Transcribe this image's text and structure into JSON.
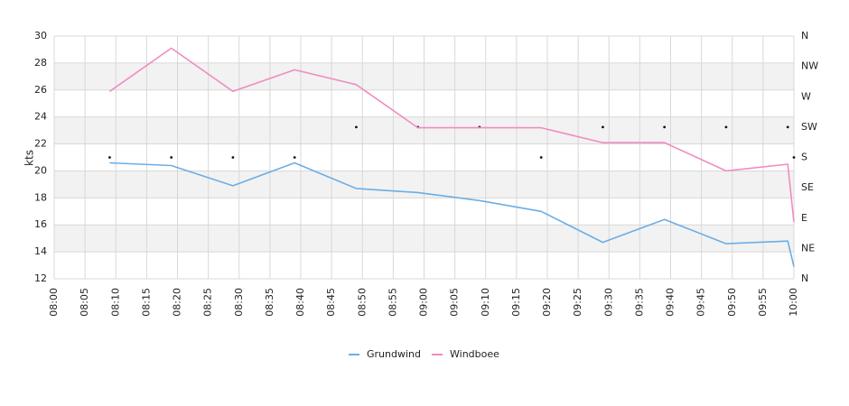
{
  "chart_data": {
    "type": "line",
    "ylabel": "kts",
    "ylim": [
      12,
      30
    ],
    "yticks": [
      12,
      14,
      16,
      18,
      20,
      22,
      24,
      26,
      28,
      30
    ],
    "xticks": [
      "08:00",
      "08:05",
      "08:10",
      "08:15",
      "08:20",
      "08:25",
      "08:30",
      "08:35",
      "08:40",
      "08:45",
      "08:50",
      "08:55",
      "09:00",
      "09:05",
      "09:10",
      "09:15",
      "09:20",
      "09:25",
      "09:30",
      "09:35",
      "09:40",
      "09:45",
      "09:50",
      "09:55",
      "10:00"
    ],
    "direction_ticks": [
      "N",
      "NE",
      "E",
      "SE",
      "S",
      "SW",
      "W",
      "NW",
      "N"
    ],
    "grid": true,
    "legend_position": "bottom-center",
    "series": [
      {
        "name": "Grundwind",
        "color": "#6aaee8",
        "points": [
          [
            "08:09",
            20.6
          ],
          [
            "08:19",
            20.4
          ],
          [
            "08:29",
            18.9
          ],
          [
            "08:39",
            20.6
          ],
          [
            "08:49",
            18.7
          ],
          [
            "08:59",
            18.4
          ],
          [
            "09:09",
            17.8
          ],
          [
            "09:19",
            17.0
          ],
          [
            "09:29",
            14.7
          ],
          [
            "09:39",
            16.4
          ],
          [
            "09:49",
            14.6
          ],
          [
            "09:59",
            14.8
          ],
          [
            "10:00",
            12.9
          ]
        ]
      },
      {
        "name": "Windboee",
        "color": "#f08cc0",
        "points": [
          [
            "08:09",
            25.9
          ],
          [
            "08:19",
            29.1
          ],
          [
            "08:29",
            25.9
          ],
          [
            "08:39",
            27.5
          ],
          [
            "08:49",
            26.4
          ],
          [
            "08:59",
            23.2
          ],
          [
            "09:09",
            23.2
          ],
          [
            "09:19",
            23.2
          ],
          [
            "09:29",
            22.1
          ],
          [
            "09:39",
            22.1
          ],
          [
            "09:49",
            20.0
          ],
          [
            "09:59",
            20.5
          ],
          [
            "10:00",
            16.2
          ]
        ]
      }
    ],
    "direction_markers": [
      [
        "08:09",
        "S"
      ],
      [
        "08:19",
        "S"
      ],
      [
        "08:29",
        "S"
      ],
      [
        "08:39",
        "S"
      ],
      [
        "08:49",
        "SW"
      ],
      [
        "08:59",
        "SW"
      ],
      [
        "09:09",
        "SW"
      ],
      [
        "09:19",
        "S"
      ],
      [
        "09:29",
        "SW"
      ],
      [
        "09:39",
        "SW"
      ],
      [
        "09:49",
        "SW"
      ],
      [
        "09:59",
        "SW"
      ],
      [
        "10:00",
        "S"
      ]
    ]
  }
}
